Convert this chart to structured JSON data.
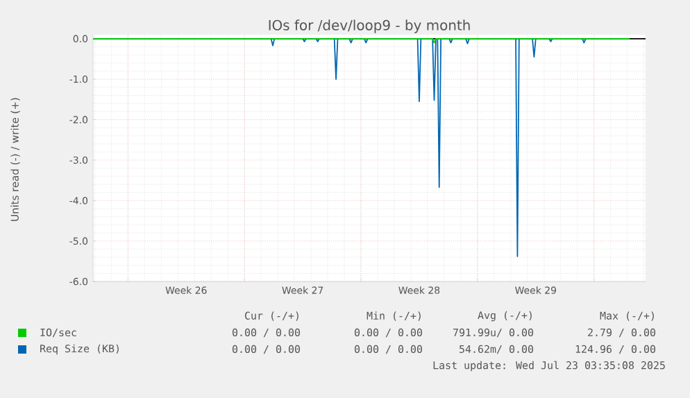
{
  "chart_data": {
    "type": "line",
    "title": "IOs for /dev/loop9 - by month",
    "ylabel": "Units read (-) / write (+)",
    "xlim": [
      "2025-06-20T21:36",
      "2025-07-24T02:24"
    ],
    "ylim": [
      -6,
      0.1
    ],
    "xticks": [
      {
        "value": "2025-06-23",
        "label": null
      },
      {
        "value": "2025-06-26T12:00",
        "label": "Week 26"
      },
      {
        "value": "2025-06-30",
        "label": null
      },
      {
        "value": "2025-07-03T12:00",
        "label": "Week 27"
      },
      {
        "value": "2025-07-07",
        "label": null
      },
      {
        "value": "2025-07-10T12:00",
        "label": "Week 28"
      },
      {
        "value": "2025-07-14",
        "label": null
      },
      {
        "value": "2025-07-17T12:00",
        "label": "Week 29"
      },
      {
        "value": "2025-07-21",
        "label": null
      }
    ],
    "yticks": [
      {
        "value": 0,
        "label": "0.0"
      },
      {
        "value": -1,
        "label": "-1.0"
      },
      {
        "value": -2,
        "label": "-2.0"
      },
      {
        "value": -3,
        "label": "-3.0"
      },
      {
        "value": -4,
        "label": "-4.0"
      },
      {
        "value": -5,
        "label": "-5.0"
      },
      {
        "value": -6,
        "label": "-6.0"
      }
    ],
    "grid": true,
    "legend": "bottom",
    "marker": "none",
    "line_style": "solid",
    "x": [
      "2025-06-20T21:36",
      "2025-07-01T14:24",
      "2025-07-01T16:48",
      "2025-07-01T19:12",
      "2025-07-03T12:00",
      "2025-07-03T14:24",
      "2025-07-03T16:48",
      "2025-07-04T07:12",
      "2025-07-04T09:36",
      "2025-07-04T12:00",
      "2025-07-05T09:36",
      "2025-07-05T12:00",
      "2025-07-05T14:24",
      "2025-07-06T07:12",
      "2025-07-06T09:36",
      "2025-07-06T12:00",
      "2025-07-07T04:48",
      "2025-07-07T07:12",
      "2025-07-07T09:36",
      "2025-07-10T09:36",
      "2025-07-10T12:00",
      "2025-07-10T14:24",
      "2025-07-11T07:12",
      "2025-07-11T09:36",
      "2025-07-11T12:00",
      "2025-07-11T14:24",
      "2025-07-11T16:48",
      "2025-07-11T19:12",
      "2025-07-12T07:12",
      "2025-07-12T09:36",
      "2025-07-12T12:00",
      "2025-07-13T07:12",
      "2025-07-13T09:36",
      "2025-07-13T12:00",
      "2025-07-16T07:12",
      "2025-07-16T09:36",
      "2025-07-16T12:00",
      "2025-07-17T07:12",
      "2025-07-17T09:36",
      "2025-07-17T12:00",
      "2025-07-18T07:12",
      "2025-07-18T09:36",
      "2025-07-18T12:00",
      "2025-07-20T07:12",
      "2025-07-20T09:36",
      "2025-07-20T12:00",
      "2025-07-23T03:35"
    ],
    "series": [
      {
        "name": "IO/sec",
        "color": "#00cc00",
        "values": [
          0,
          0,
          0,
          0,
          0,
          0,
          0,
          0,
          0,
          0,
          0,
          0,
          0,
          0,
          0,
          0,
          0,
          0,
          0,
          0,
          0,
          0,
          0,
          -0.1,
          0,
          0,
          0,
          0,
          0,
          0,
          0,
          0,
          0,
          0,
          0,
          0,
          0,
          0,
          0,
          0,
          0,
          0,
          0,
          0,
          0,
          0,
          0
        ]
      },
      {
        "name": "Req Size (KB)",
        "color": "#0066b3",
        "values": [
          0,
          0,
          -0.17,
          0,
          0,
          -0.07,
          0,
          0,
          -0.07,
          0,
          0,
          -1.0,
          0,
          0,
          -0.1,
          0,
          0,
          -0.1,
          0,
          0,
          -1.55,
          0,
          0,
          -1.52,
          0,
          0,
          -3.67,
          0,
          0,
          -0.1,
          0,
          0,
          -0.12,
          0,
          0,
          -5.38,
          0,
          0,
          -0.45,
          0,
          0,
          -0.07,
          0,
          0,
          -0.1,
          0,
          0
        ]
      }
    ],
    "annotations": [
      "Cur (-/+)",
      "Min (-/+)",
      "Avg (-/+)",
      "Max (-/+)",
      "0.00 / 0.00",
      "0.00 / 0.00",
      "791.99u/ 0.00",
      "2.79 / 0.00",
      "0.00 / 0.00",
      "0.00 / 0.00",
      "54.62m/ 0.00",
      "124.96 / 0.00",
      "Last update: Wed Jul 23 03:35:08 2025"
    ]
  }
}
